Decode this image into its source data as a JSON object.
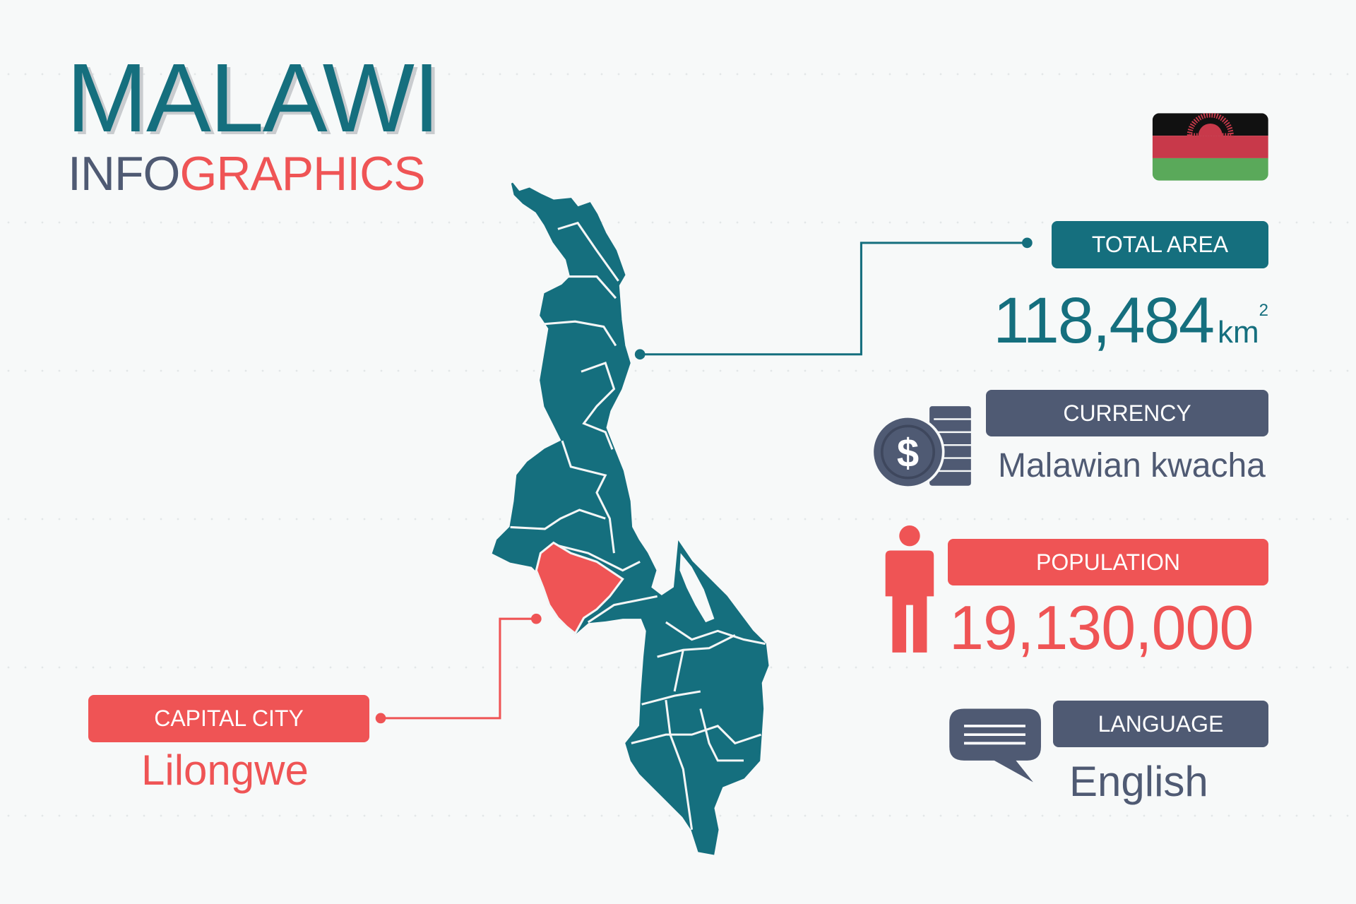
{
  "title": "MALAWI",
  "subtitle": {
    "part1": "INFO",
    "part2": "GRAPHICS"
  },
  "colors": {
    "teal": "#156f7e",
    "slate": "#4f5a73",
    "red": "#ef5455",
    "background": "#f7f9f9"
  },
  "flag": {
    "country": "Malawi",
    "stripes": [
      "#111111",
      "#c8394a",
      "#5aa95a"
    ]
  },
  "total_area": {
    "label": "TOTAL AREA",
    "value": "118,484",
    "unit": "km",
    "unit_sup": "2"
  },
  "currency": {
    "label": "CURRENCY",
    "value": "Malawian kwacha",
    "icon": "dollar-coin-icon"
  },
  "population": {
    "label": "POPULATION",
    "value": "19,130,000",
    "icon": "person-icon"
  },
  "language": {
    "label": "LANGUAGE",
    "value": "English",
    "icon": "speech-bubble-icon"
  },
  "capital": {
    "label": "CAPITAL CITY",
    "value": "Lilongwe"
  }
}
